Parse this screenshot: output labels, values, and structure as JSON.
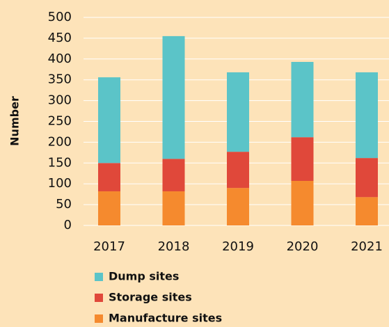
{
  "chart_data": {
    "type": "bar",
    "stacked": true,
    "y_label": "Number",
    "categories": [
      "2017",
      "2018",
      "2019",
      "2020",
      "2021"
    ],
    "series": [
      {
        "name": "Manufacture sites",
        "color": "#f58a2e",
        "values": [
          82,
          82,
          90,
          107,
          68
        ]
      },
      {
        "name": "Storage sites",
        "color": "#e0483a",
        "values": [
          68,
          78,
          87,
          105,
          94
        ]
      },
      {
        "name": "Dump sites",
        "color": "#5bc4c8",
        "values": [
          206,
          295,
          191,
          181,
          206
        ]
      }
    ],
    "ylim": [
      0,
      500
    ],
    "yticks": [
      0,
      50,
      100,
      150,
      200,
      250,
      300,
      350,
      400,
      450,
      500
    ],
    "grid": true
  }
}
